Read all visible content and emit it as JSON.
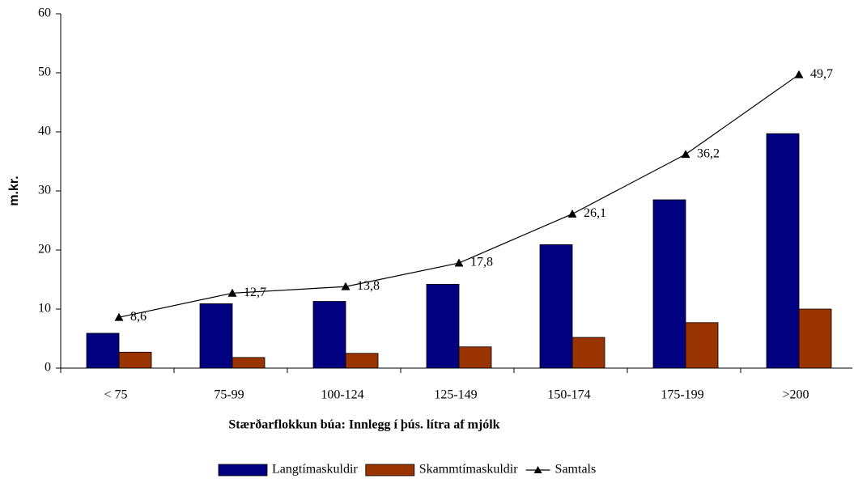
{
  "chart_data": {
    "type": "bar_line",
    "xlabel": "Stærðarflokkun búa: Innlegg í þús. lítra af mjólk",
    "ylabel": "m.kr.",
    "categories": [
      "< 75",
      "75-99",
      "100-124",
      "125-149",
      "150-174",
      "175-199",
      ">200"
    ],
    "series": [
      {
        "name": "Langtímaskuldir",
        "color": "#000080",
        "kind": "bar",
        "values": [
          5.9,
          10.9,
          11.3,
          14.2,
          20.9,
          28.5,
          39.7
        ]
      },
      {
        "name": "Skammtímaskuldir",
        "color": "#993300",
        "kind": "bar",
        "values": [
          2.7,
          1.8,
          2.5,
          3.6,
          5.2,
          7.7,
          10
        ]
      },
      {
        "name": "Samtals",
        "color": "#000000",
        "kind": "line",
        "values": [
          8.6,
          12.7,
          13.8,
          17.8,
          26.1,
          36.2,
          49.7
        ],
        "value_labels": [
          "8,6",
          "12,7",
          "13,8",
          "17,8",
          "26,1",
          "36,2",
          "49,7"
        ]
      }
    ],
    "ylim": [
      0,
      60
    ],
    "yticks": [
      0,
      10,
      20,
      30,
      40,
      50,
      60
    ],
    "legend": "bottom"
  }
}
